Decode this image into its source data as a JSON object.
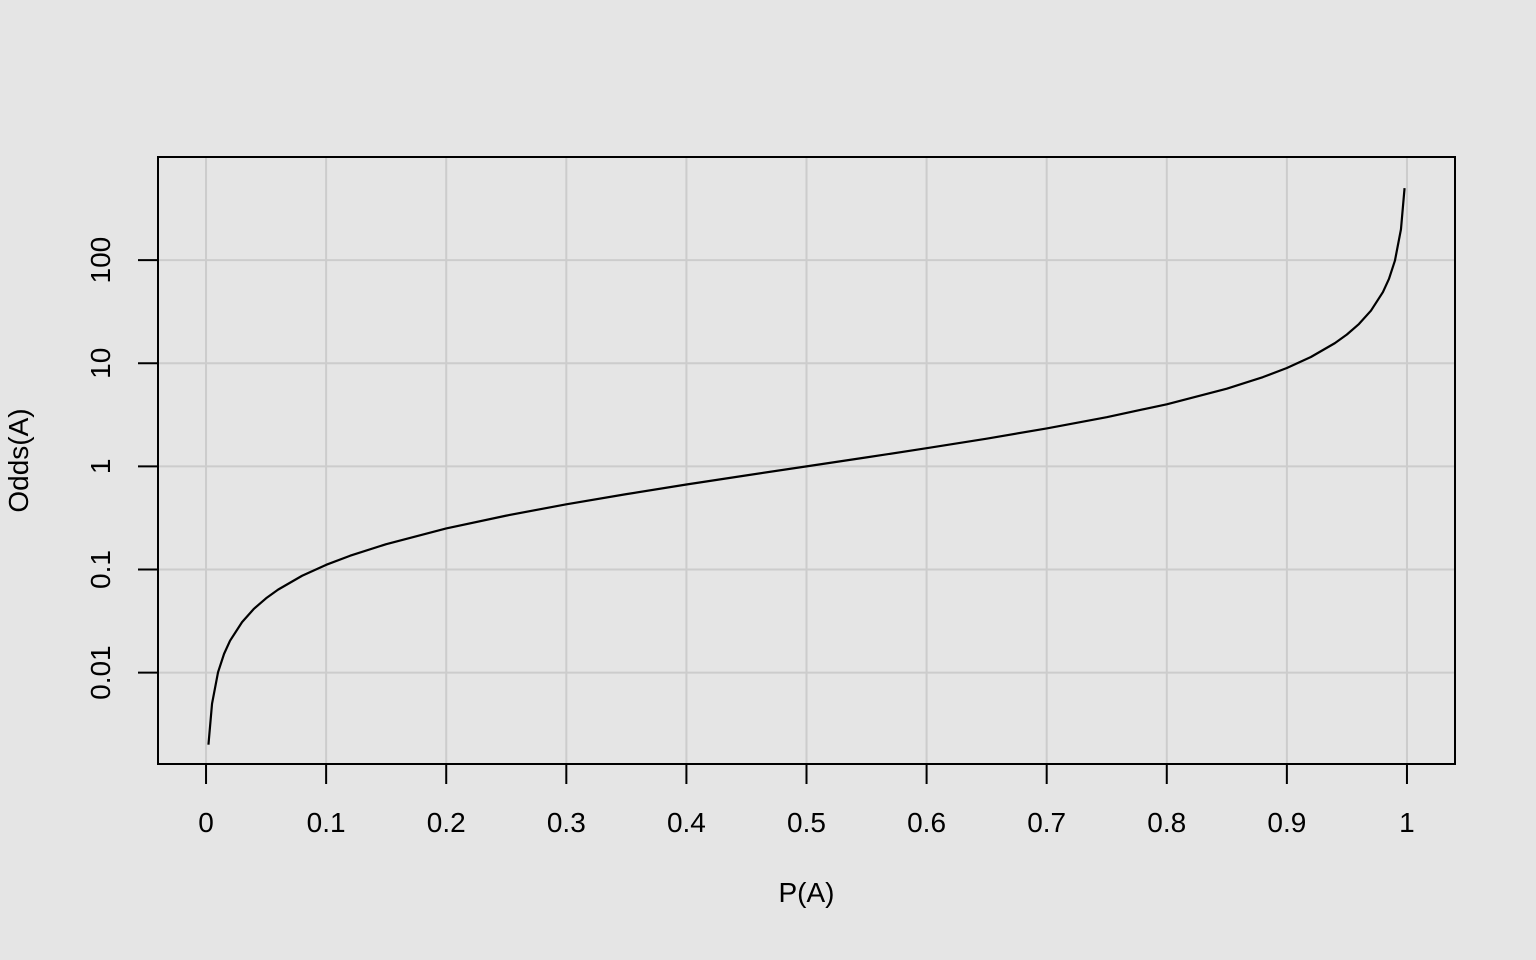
{
  "chart_data": {
    "type": "line",
    "xlabel": "P(A)",
    "ylabel": "Odds(A)",
    "xlim": [
      -0.04,
      1.04
    ],
    "ylim": [
      0.0013,
      1000
    ],
    "y_scale": "log",
    "grid": true,
    "x_ticks": [
      {
        "value": 0,
        "label": "0"
      },
      {
        "value": 0.1,
        "label": "0.1"
      },
      {
        "value": 0.2,
        "label": "0.2"
      },
      {
        "value": 0.3,
        "label": "0.3"
      },
      {
        "value": 0.4,
        "label": "0.4"
      },
      {
        "value": 0.5,
        "label": "0.5"
      },
      {
        "value": 0.6,
        "label": "0.6"
      },
      {
        "value": 0.7,
        "label": "0.7"
      },
      {
        "value": 0.8,
        "label": "0.8"
      },
      {
        "value": 0.9,
        "label": "0.9"
      },
      {
        "value": 1,
        "label": "1"
      }
    ],
    "y_ticks": [
      {
        "value": 0.01,
        "label": "0.01"
      },
      {
        "value": 0.1,
        "label": "0.1"
      },
      {
        "value": 1,
        "label": "1"
      },
      {
        "value": 10,
        "label": "10"
      },
      {
        "value": 100,
        "label": "100"
      }
    ],
    "series": [
      {
        "line_color": "#000000",
        "x": [
          0.002,
          0.005,
          0.01,
          0.015,
          0.02,
          0.03,
          0.04,
          0.05,
          0.06,
          0.08,
          0.1,
          0.12,
          0.15,
          0.2,
          0.25,
          0.3,
          0.35,
          0.4,
          0.45,
          0.5,
          0.55,
          0.6,
          0.65,
          0.7,
          0.75,
          0.8,
          0.85,
          0.88,
          0.9,
          0.92,
          0.94,
          0.95,
          0.96,
          0.97,
          0.98,
          0.985,
          0.99,
          0.995,
          0.998
        ],
        "y": [
          0.002,
          0.005,
          0.0101,
          0.0152,
          0.0204,
          0.0309,
          0.0417,
          0.0526,
          0.0638,
          0.087,
          0.111,
          0.136,
          0.176,
          0.25,
          0.333,
          0.429,
          0.538,
          0.667,
          0.818,
          1,
          1.222,
          1.5,
          1.857,
          2.333,
          3,
          4,
          5.667,
          7.333,
          9,
          11.5,
          15.667,
          19,
          24,
          32.333,
          49,
          65.667,
          99,
          199,
          499
        ]
      }
    ]
  },
  "colors": {
    "background": "#e5e5e5",
    "grid": "#cccccc",
    "axis": "#000000",
    "line": "#000000"
  }
}
